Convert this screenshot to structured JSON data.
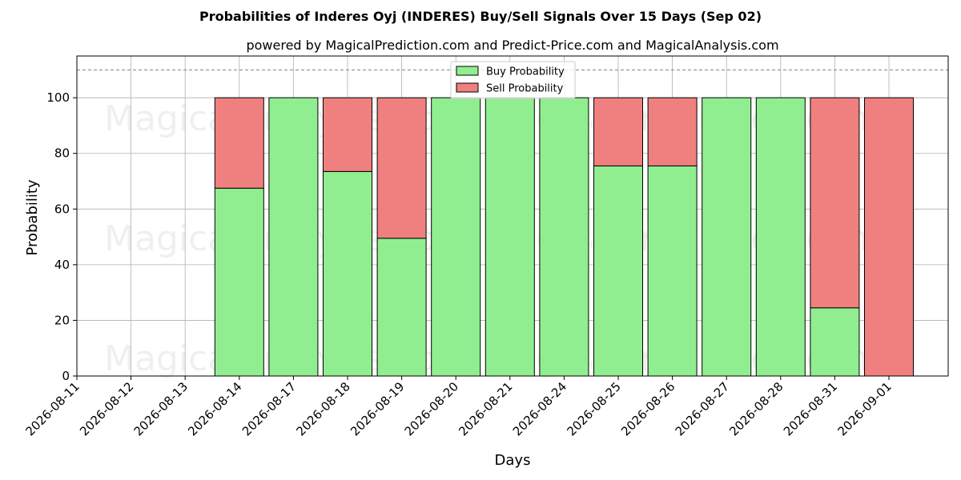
{
  "chart_data": {
    "type": "bar",
    "stacked": true,
    "title": "Probabilities of Inderes Oyj (INDERES) Buy/Sell Signals Over 15 Days (Sep 02)",
    "subtitle": "powered by MagicalPrediction.com and Predict-Price.com and MagicalAnalysis.com",
    "xlabel": "Days",
    "ylabel": "Probability",
    "ylim": [
      0,
      115
    ],
    "yticks": [
      0,
      20,
      40,
      60,
      80,
      100
    ],
    "reference_line": 110,
    "grid": true,
    "legend_position": "top-center",
    "categories": [
      "2026-08-11",
      "2026-08-12",
      "2026-08-13",
      "2026-08-14",
      "2026-08-17",
      "2026-08-18",
      "2026-08-19",
      "2026-08-20",
      "2026-08-21",
      "2026-08-24",
      "2026-08-25",
      "2026-08-26",
      "2026-08-27",
      "2026-08-28",
      "2026-08-31",
      "2026-09-01"
    ],
    "series": [
      {
        "name": "Buy Probability",
        "color": "#90ee90",
        "values": [
          null,
          null,
          null,
          67.5,
          100,
          73.5,
          49.5,
          100,
          100,
          100,
          75.5,
          75.5,
          100,
          100,
          24.5,
          0
        ]
      },
      {
        "name": "Sell Probability",
        "color": "#f08080",
        "values": [
          null,
          null,
          null,
          32.5,
          0,
          26.5,
          50.5,
          0,
          0,
          0,
          24.5,
          24.5,
          0,
          0,
          75.5,
          100
        ]
      }
    ],
    "watermarks": [
      "MagicalAnalysis.com",
      "MagicalPrediction.com",
      "MagicalAnalysis.com",
      "MagicalPrediction.com",
      "MagicalAnalysis.com",
      "MagicalPrediction.com"
    ]
  }
}
